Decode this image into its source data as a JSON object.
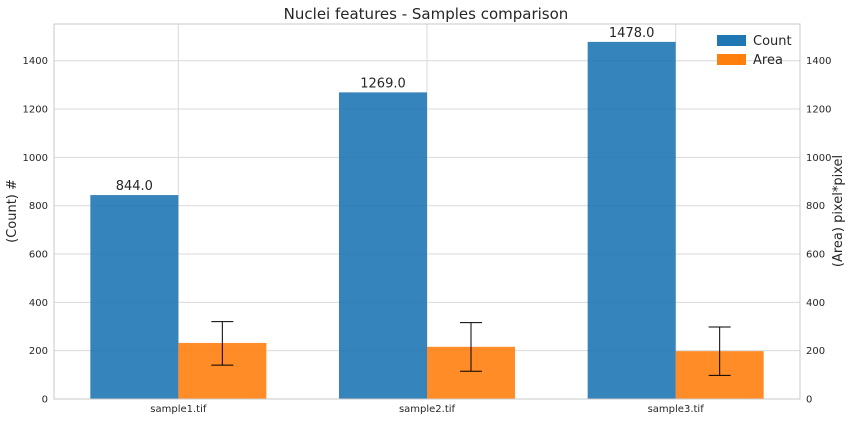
{
  "chart_data": {
    "type": "bar",
    "title": "Nuclei features - Samples comparison",
    "categories": [
      "sample1.tif",
      "sample2.tif",
      "sample3.tif"
    ],
    "ylabel_left": "(Count) #",
    "ylabel_right": "(Area) pixel*pixel",
    "ylim": [
      0,
      1552
    ],
    "yticks": [
      0,
      200,
      400,
      600,
      800,
      1000,
      1200,
      1400
    ],
    "grid": true,
    "legend_position": "top-right",
    "series": [
      {
        "name": "Count",
        "axis": "left",
        "color": "#1f77b4",
        "values": [
          844.0,
          1269.0,
          1478.0
        ],
        "labels": [
          "844.0",
          "1269.0",
          "1478.0"
        ]
      },
      {
        "name": "Area",
        "axis": "right",
        "color": "#ff7f0e",
        "values": [
          232,
          216,
          198
        ],
        "error": [
          [
            140,
            320
          ],
          [
            115,
            316
          ],
          [
            98,
            298
          ]
        ]
      }
    ]
  }
}
